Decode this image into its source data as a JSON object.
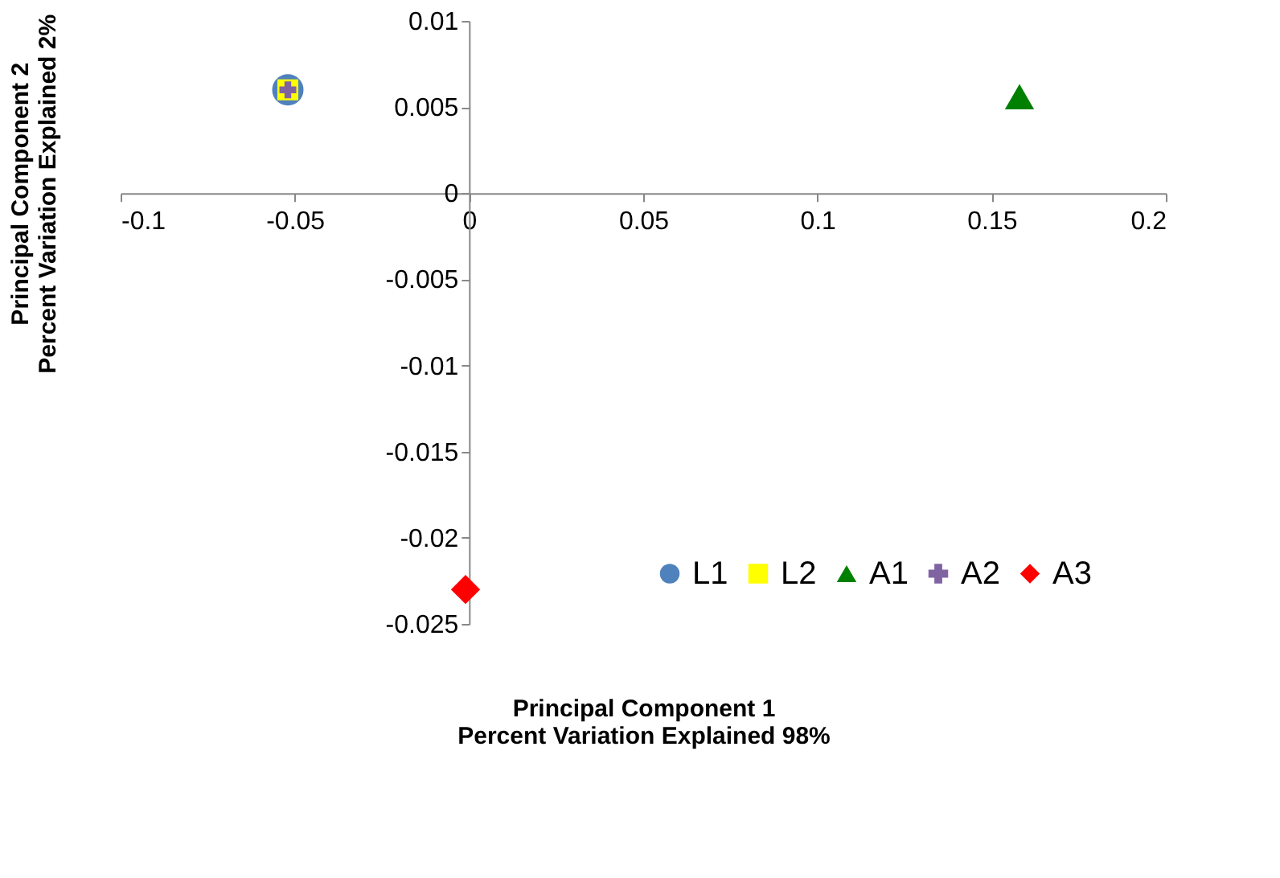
{
  "chart_data": {
    "type": "scatter",
    "xlabel": "Principal Component 1\nPercent Variation Explained 98%",
    "ylabel": "Principal Component 2\nPercent Variation Explained 2%",
    "xlim": [
      -0.1,
      0.2
    ],
    "xticks": [
      -0.1,
      -0.05,
      0,
      0.05,
      0.1,
      0.15,
      0.2
    ],
    "ylim": [
      -0.025,
      0.01
    ],
    "yticks": [
      -0.025,
      -0.02,
      -0.015,
      -0.01,
      -0.005,
      0,
      0.005,
      0.01
    ],
    "grid": false,
    "legend": "bottom right",
    "series": [
      {
        "name": "L1",
        "color": "#4f81bd",
        "marker": "circle",
        "x": [
          -0.052
        ],
        "values": [
          0.006
        ]
      },
      {
        "name": "L2",
        "color": "#ffff00",
        "marker": "square",
        "x": [
          -0.052
        ],
        "values": [
          0.006
        ]
      },
      {
        "name": "A1",
        "color": "#008000",
        "marker": "triangle",
        "x": [
          0.158
        ],
        "values": [
          0.0056
        ]
      },
      {
        "name": "A2",
        "color": "#8064a2",
        "marker": "cross",
        "x": [
          -0.052
        ],
        "values": [
          0.006
        ]
      },
      {
        "name": "A3",
        "color": "#ff0000",
        "marker": "diamond",
        "x": [
          -0.001
        ],
        "values": [
          -0.023
        ]
      }
    ]
  }
}
